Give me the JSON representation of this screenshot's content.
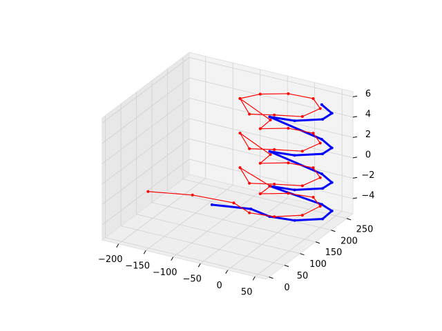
{
  "chart_data": {
    "type": "scatter3d",
    "xlim": [
      -230,
      70
    ],
    "ylim": [
      -10,
      270
    ],
    "zlim": [
      -5.5,
      6.5
    ],
    "xticks": [
      {
        "value": -200,
        "label": "−200"
      },
      {
        "value": -150,
        "label": "−150"
      },
      {
        "value": -100,
        "label": "−100"
      },
      {
        "value": -50,
        "label": "−50"
      },
      0,
      50
    ],
    "yticks": [
      0,
      50,
      100,
      150,
      200,
      250
    ],
    "zticks": [
      {
        "value": -4,
        "label": "−4"
      },
      {
        "value": -2,
        "label": "−2"
      },
      0,
      2,
      4,
      6
    ],
    "grid": true,
    "series": [
      {
        "color": "#0000ff",
        "x": [
          -120,
          -60,
          -20,
          20,
          60,
          60,
          30,
          -20,
          20,
          60,
          60,
          30,
          -20,
          20,
          60,
          60,
          30,
          -20,
          20,
          60,
          60,
          30
        ],
        "y": [
          150,
          170,
          160,
          170,
          190,
          220,
          240,
          160,
          170,
          190,
          220,
          240,
          160,
          170,
          190,
          220,
          240,
          160,
          170,
          190,
          220,
          240
        ],
        "z": [
          -4.3,
          -4.4,
          -4.4,
          -4.5,
          -4.3,
          -4.2,
          -4.4,
          -1.4,
          -1.5,
          -1.3,
          -1.4,
          -1.4,
          2.0,
          1.9,
          2.1,
          2.0,
          2.0,
          5.4,
          5.3,
          5.5,
          5.4,
          5.4
        ]
      },
      {
        "color": "#ff0000",
        "x": [
          -220,
          -150,
          -80,
          -40,
          0,
          40,
          50,
          20,
          -20,
          -60,
          -30,
          -80,
          -40,
          0,
          40,
          50,
          20,
          -20,
          -60,
          -30,
          -80,
          -40,
          0,
          40,
          50,
          20,
          -20,
          -60,
          -30,
          -80,
          -40,
          0,
          40,
          50,
          20,
          -20,
          -60,
          -80
        ],
        "y": [
          120,
          140,
          150,
          130,
          140,
          160,
          200,
          230,
          220,
          200,
          180,
          170,
          130,
          140,
          160,
          200,
          230,
          220,
          200,
          180,
          170,
          130,
          140,
          160,
          200,
          230,
          220,
          200,
          180,
          170,
          130,
          140,
          160,
          200,
          230,
          220,
          200,
          170
        ],
        "z": [
          -3.6,
          -3.5,
          -3.6,
          -3.6,
          -3.7,
          -3.5,
          -3.4,
          -3.6,
          -3.5,
          -3.6,
          -2,
          -0.6,
          -0.7,
          -0.5,
          -0.6,
          -0.6,
          -0.7,
          -0.5,
          -0.6,
          1.1,
          2.8,
          2.7,
          2.9,
          2.8,
          2.8,
          2.7,
          2.9,
          2.8,
          4.5,
          6.2,
          6.1,
          6.3,
          6.2,
          6.2,
          6.1,
          6.3,
          6.2,
          6.2
        ]
      }
    ]
  }
}
